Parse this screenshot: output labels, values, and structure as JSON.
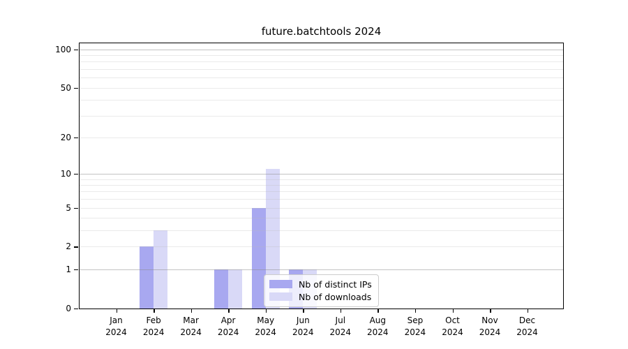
{
  "chart_data": {
    "type": "bar",
    "title": "future.batchtools 2024",
    "categories": [
      "Jan 2024",
      "Feb 2024",
      "Mar 2024",
      "Apr 2024",
      "May 2024",
      "Jun 2024",
      "Jul 2024",
      "Aug 2024",
      "Sep 2024",
      "Oct 2024",
      "Nov 2024",
      "Dec 2024"
    ],
    "series": [
      {
        "id": "distinct-ips",
        "name": "Nb of distinct IPs",
        "color": "#a8a8f0",
        "values": [
          0,
          2,
          0,
          1,
          5,
          1,
          0,
          0,
          0,
          0,
          0,
          0
        ]
      },
      {
        "id": "downloads",
        "name": "Nb of downloads",
        "color": "#d9d9f7",
        "values": [
          0,
          3,
          0,
          1,
          11,
          1,
          0,
          0,
          0,
          0,
          0,
          0
        ]
      }
    ],
    "yscale": "log10(x+1)",
    "ylim": [
      0,
      100
    ],
    "yticks": [
      0,
      1,
      2,
      5,
      10,
      20,
      50,
      100
    ],
    "major_gridlines": [
      1,
      10,
      100
    ],
    "minor_gridlines": [
      2,
      3,
      4,
      5,
      6,
      7,
      8,
      9,
      20,
      30,
      40,
      50,
      60,
      70,
      80,
      90
    ],
    "grid": "horizontal",
    "legend_position": "inside-bottom-center",
    "xlabel": "",
    "ylabel": ""
  },
  "colors": {
    "background": "#ffffff",
    "spine": "#000000",
    "major_grid": "#cbcbcb",
    "minor_grid": "#e6e6e6",
    "legend_border": "#cccccc"
  }
}
